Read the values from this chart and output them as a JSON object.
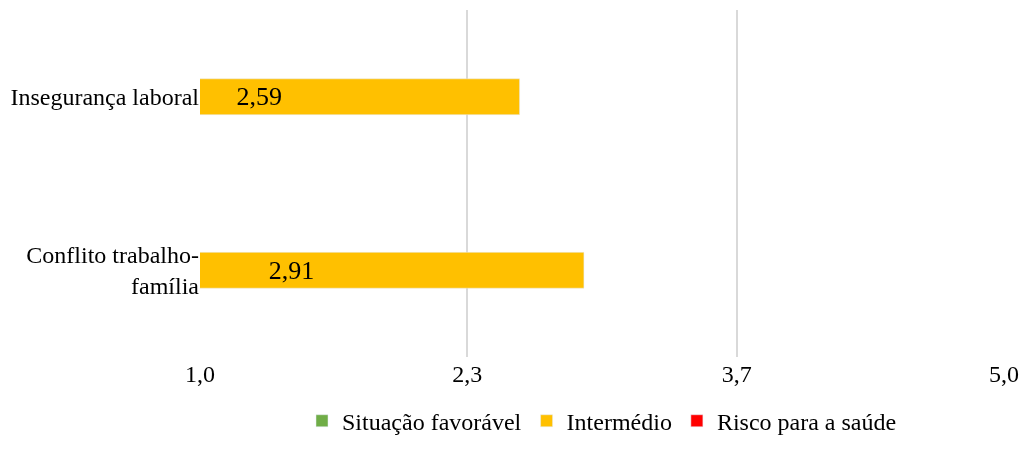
{
  "chart_data": {
    "type": "bar",
    "orientation": "horizontal",
    "categories": [
      "Insegurança laboral",
      "Conflito trabalho-família"
    ],
    "series": [
      {
        "name": "Situação favorável",
        "color": "#70ad47",
        "values": [
          null,
          null
        ]
      },
      {
        "name": "Intermédio",
        "color": "#ffc000",
        "values": [
          2.59,
          2.91
        ],
        "value_labels": [
          "2,59",
          "2,91"
        ]
      },
      {
        "name": "Risco para a saúde",
        "color": "#ff0000",
        "values": [
          null,
          null
        ]
      }
    ],
    "xlim": [
      1.0,
      5.0
    ],
    "xticks": [
      {
        "value": 1.0,
        "label": "1,0"
      },
      {
        "value": 2.33,
        "label": "2,3"
      },
      {
        "value": 3.67,
        "label": "3,7"
      },
      {
        "value": 5.0,
        "label": "5,0"
      }
    ],
    "grid": "x",
    "legend": "bottom"
  }
}
